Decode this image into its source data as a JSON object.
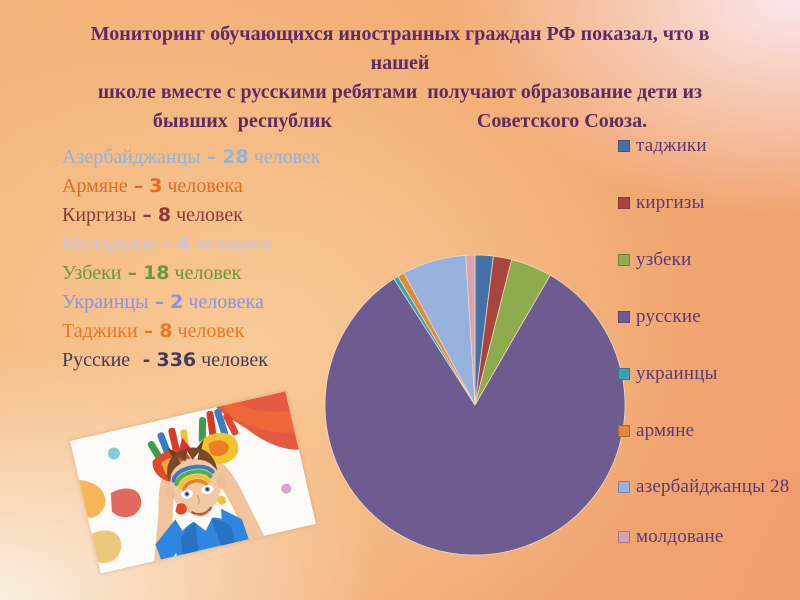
{
  "slide": {
    "title": {
      "line1": "Мониторинг обучающихся иностранных граждан РФ показал, что в",
      "line2": "нашей",
      "line3": "школе вместе с русскими ребятами  получают образование дети из",
      "line4_left": "бывших  республик",
      "line4_right": "Советского Союза.",
      "color": "#602B62"
    },
    "list": {
      "items": [
        {
          "name": "Азербайджанцы",
          "dash": "–",
          "value": "28",
          "unit": "человек",
          "color": "#92B4DE"
        },
        {
          "name": "Армяне",
          "dash": "–",
          "value": "3",
          "unit": "человека",
          "color": "#DF6B24"
        },
        {
          "name": "Киргизы",
          "dash": "–",
          "value": "8",
          "unit": "человек",
          "color": "#8E3A34"
        },
        {
          "name": "Молдаване",
          "dash": "–",
          "value": "4",
          "unit": "человека",
          "color": "#CFC4DF"
        },
        {
          "name": "Узбеки",
          "dash": "–",
          "value": "18",
          "unit": "человек",
          "color": "#70963B"
        },
        {
          "name": "Украинцы",
          "dash": "–",
          "value": "2",
          "unit": "человека",
          "color": "#8F8FE8"
        },
        {
          "name": "Таджики",
          "dash": "–",
          "value": "8",
          "unit": "человек",
          "color": "#EE7522"
        },
        {
          "name": "Русские",
          "dash": "-",
          "value": "336",
          "unit": "человек",
          "color": "#47395E"
        }
      ]
    }
  },
  "chart_data": {
    "type": "pie",
    "categories": [
      "таджики",
      "киргизы",
      "узбеки",
      "русские",
      "украинцы",
      "армяне",
      "азербайджанцы",
      "молдоване"
    ],
    "values": [
      8,
      8,
      18,
      336,
      2,
      3,
      28,
      4
    ],
    "total": 407,
    "colors": [
      "#4472A8",
      "#A9443F",
      "#8EAC4E",
      "#6E5B8F",
      "#38A3B5",
      "#DD8C3B",
      "#97B2DC",
      "#D7A3AE"
    ],
    "legend_labels": [
      "таджики",
      "киргизы",
      "узбеки",
      "русские",
      "украинцы",
      "армяне",
      "азербайджанцы 28",
      "молдоване"
    ],
    "legend_position": "right",
    "legend_text_color": "#5E3776",
    "start_angle_deg": -90,
    "direction": "clockwise",
    "title": ""
  }
}
